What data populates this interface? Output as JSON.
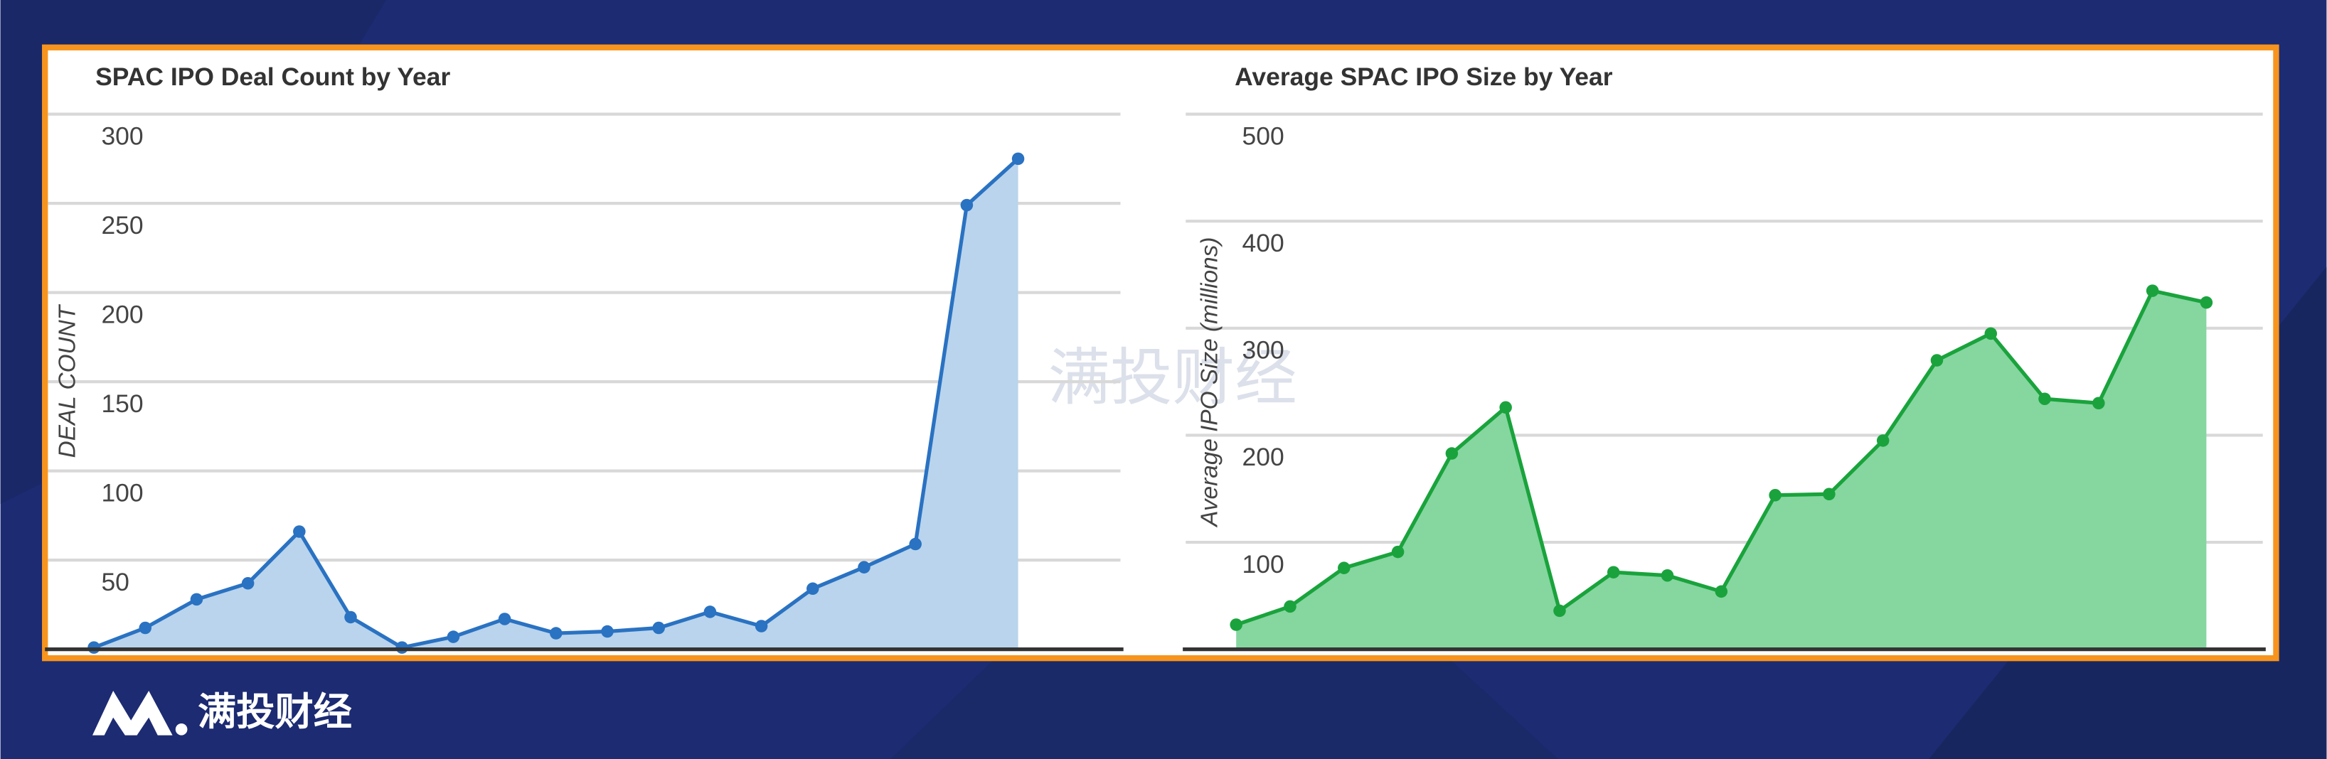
{
  "chart_data": [
    {
      "type": "area",
      "title": "SPAC IPO Deal Count by Year",
      "y_label": "DEAL COUNT",
      "series": [
        {
          "color": "#2a72c2",
          "fill": "#b9d4ec",
          "values": [
            1,
            12,
            28,
            37,
            66,
            18,
            1,
            7,
            17,
            9,
            10,
            12,
            21,
            13,
            34,
            46,
            59,
            249,
            275
          ]
        }
      ],
      "ylim": [
        0,
        300
      ],
      "yticks": [
        50,
        100,
        150,
        200,
        250,
        300
      ],
      "grid": true
    },
    {
      "type": "area",
      "title": "Average SPAC IPO Size by Year",
      "y_label": "Average IPO Size (millions)",
      "series": [
        {
          "color": "#1aa33c",
          "fill": "#86d6a0",
          "values": [
            23,
            40,
            76,
            91,
            183,
            226,
            36,
            72,
            69,
            54,
            144,
            145,
            195,
            270,
            295,
            234,
            230,
            335,
            324
          ]
        }
      ],
      "ylim": [
        0,
        500
      ],
      "yticks": [
        100,
        200,
        300,
        400,
        500
      ],
      "grid": true
    }
  ],
  "watermark": "满投财经",
  "logo_text": "满投财经"
}
